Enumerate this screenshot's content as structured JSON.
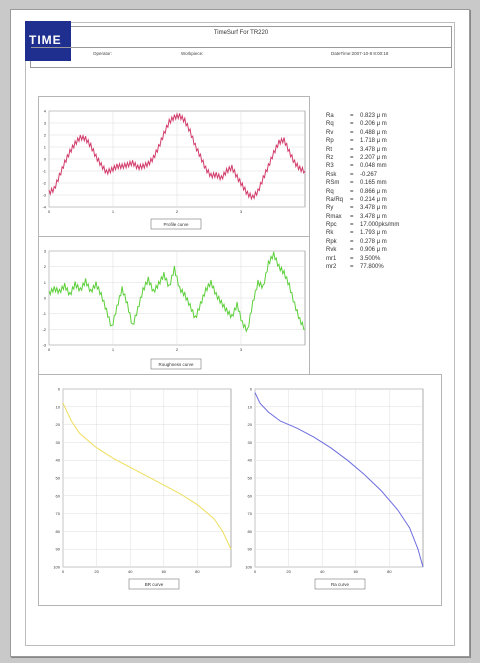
{
  "header": {
    "logo": "TIME",
    "title": "TimeSurf For TR220",
    "operator": "Operator:",
    "workpiece": "Workpiece:",
    "date": "DateTime:2007-10-8 8:00:18"
  },
  "parameters": [
    {
      "name": "Ra",
      "value": "0.823 μ m"
    },
    {
      "name": "Rq",
      "value": "0.206 μ m"
    },
    {
      "name": "Rv",
      "value": "0.488 μ m"
    },
    {
      "name": "Rp",
      "value": "1.718 μ m"
    },
    {
      "name": "Rt",
      "value": "3.478 μ m"
    },
    {
      "name": "Rz",
      "value": "2.207 μ m"
    },
    {
      "name": "R3",
      "value": "0.048 mm"
    },
    {
      "name": "Rsk",
      "value": "-0.267"
    },
    {
      "name": "RSm",
      "value": "0.165 mm"
    },
    {
      "name": "Rq",
      "value": "0.866 μ m"
    },
    {
      "name": "Ra/Rq",
      "value": "0.214 μ m"
    },
    {
      "name": "Ry",
      "value": "3.478 μ m"
    },
    {
      "name": "Rmax",
      "value": "3.478 μ m"
    },
    {
      "name": "Rpc",
      "value": "17.000pks/mm"
    },
    {
      "name": "Rk",
      "value": "1.793 μ m"
    },
    {
      "name": "Rpk",
      "value": "0.278 μ m"
    },
    {
      "name": "Rvk",
      "value": "0.906 μ m"
    },
    {
      "name": "mr1",
      "value": "3.500%"
    },
    {
      "name": "mr2",
      "value": "77.800%"
    }
  ],
  "chart_data": [
    {
      "type": "line",
      "title": "",
      "legend": "Profile curve",
      "x_ticks": [
        "0",
        "1",
        "2",
        "3"
      ],
      "y_ticks": [
        "4",
        "3",
        "2",
        "1",
        "0",
        "-1",
        "-2",
        "-3",
        "-4"
      ],
      "ylim": [
        -4,
        4
      ],
      "color": "#d23c6b",
      "y": [
        -2.8,
        -2.5,
        -1.4,
        -0.3,
        0.6,
        1.3,
        1.8,
        1.7,
        1.1,
        0.2,
        -0.5,
        -1.1,
        -0.9,
        -0.6,
        -0.6,
        -0.5,
        -0.3,
        -0.7,
        -0.6,
        -0.4,
        0.1,
        1.0,
        2.1,
        3.1,
        3.5,
        3.6,
        3.2,
        2.3,
        1.1,
        0.2,
        -0.8,
        -1.4,
        -1.3,
        -1.6,
        -1.0,
        -0.7,
        -1.5,
        -2.2,
        -2.9,
        -3.2,
        -2.7,
        -1.6,
        -0.6,
        0.5,
        1.4,
        1.6,
        0.6,
        -0.3,
        -0.8,
        -1.0
      ]
    },
    {
      "type": "line",
      "title": "",
      "legend": "Roughness curve",
      "x_ticks": [
        "0",
        "1",
        "2",
        "3"
      ],
      "y_ticks": [
        "3",
        "2",
        "1",
        "0",
        "-1",
        "-2",
        "-3"
      ],
      "ylim": [
        -3,
        3
      ],
      "color": "#5ccf3a",
      "y": [
        0.3,
        0.6,
        0.4,
        0.8,
        0.2,
        0.9,
        0.5,
        1.1,
        0.4,
        0.9,
        0.2,
        -0.8,
        -1.9,
        -0.6,
        0.6,
        -0.4,
        -1.8,
        -0.7,
        0.5,
        1.2,
        0.4,
        0.9,
        1.5,
        0.7,
        1.9,
        0.6,
        0.2,
        -0.5,
        -1.3,
        -0.4,
        0.5,
        1.0,
        0.2,
        -0.3,
        -0.8,
        -1.2,
        -0.4,
        -1.6,
        -2.1,
        -0.3,
        1.0,
        0.7,
        2.2,
        2.8,
        2.0,
        1.6,
        0.8,
        -0.4,
        -1.4,
        -2.0
      ]
    },
    {
      "type": "line",
      "title": "",
      "legend": "BR curve",
      "x_ticks": [
        "0",
        "20",
        "40",
        "60",
        "80"
      ],
      "y_ticks": [
        "0",
        "10",
        "20",
        "30",
        "40",
        "50",
        "60",
        "70",
        "80",
        "90",
        "100"
      ],
      "ylim": [
        0,
        100
      ],
      "color": "#eede5a",
      "x": [
        0,
        5,
        10,
        20,
        30,
        40,
        50,
        60,
        70,
        80,
        90,
        95,
        100
      ],
      "y": [
        8,
        18,
        25,
        33,
        39,
        44,
        49,
        54,
        59,
        65,
        73,
        80,
        90
      ]
    },
    {
      "type": "line",
      "title": "",
      "legend": "Ra curve",
      "x_ticks": [
        "0",
        "20",
        "40",
        "60",
        "80"
      ],
      "y_ticks": [
        "0",
        "10",
        "20",
        "30",
        "40",
        "50",
        "60",
        "70",
        "80",
        "90",
        "100"
      ],
      "ylim": [
        0,
        100
      ],
      "color": "#6d6de0",
      "x": [
        0,
        3,
        8,
        15,
        25,
        35,
        45,
        55,
        65,
        75,
        85,
        92,
        97,
        100
      ],
      "y": [
        2,
        8,
        13,
        18,
        22,
        27,
        33,
        40,
        48,
        57,
        68,
        78,
        90,
        100
      ]
    }
  ]
}
